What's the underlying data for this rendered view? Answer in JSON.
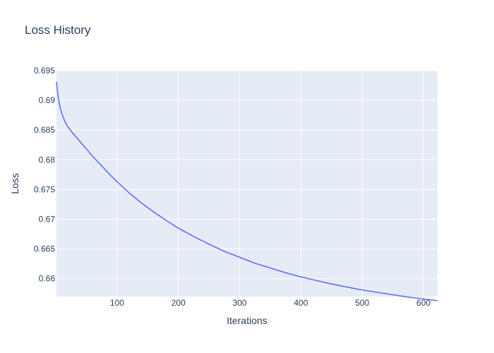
{
  "chart_data": {
    "type": "line",
    "title": "Loss History",
    "xlabel": "Iterations",
    "ylabel": "Loss",
    "xlim": [
      1,
      623
    ],
    "ylim": [
      0.657,
      0.695
    ],
    "grid": true,
    "xticks": [
      100,
      200,
      300,
      400,
      500,
      600
    ],
    "xtick_labels": [
      "100",
      "200",
      "300",
      "400",
      "500",
      "600"
    ],
    "yticks": [
      0.66,
      0.665,
      0.67,
      0.675,
      0.68,
      0.685,
      0.69,
      0.695
    ],
    "ytick_labels": [
      "0.66",
      "0.665",
      "0.67",
      "0.675",
      "0.68",
      "0.685",
      "0.69",
      "0.695"
    ],
    "series": [
      {
        "color": "#636efa",
        "x": [
          1,
          3,
          5,
          8,
          11,
          15,
          20,
          25,
          30,
          40,
          50,
          60,
          70,
          80,
          90,
          100,
          120,
          140,
          160,
          180,
          200,
          225,
          250,
          275,
          300,
          325,
          350,
          375,
          400,
          425,
          450,
          475,
          500,
          525,
          550,
          575,
          600,
          623
        ],
        "y": [
          0.6931,
          0.6912,
          0.6898,
          0.6884,
          0.6874,
          0.6864,
          0.6855,
          0.6848,
          0.6842,
          0.683,
          0.6818,
          0.6806,
          0.6795,
          0.6784,
          0.6773,
          0.6763,
          0.6744,
          0.6727,
          0.6712,
          0.6698,
          0.6685,
          0.6671,
          0.6658,
          0.6646,
          0.6636,
          0.6626,
          0.6618,
          0.661,
          0.6603,
          0.6597,
          0.6591,
          0.6586,
          0.6581,
          0.6577,
          0.6573,
          0.6569,
          0.6566,
          0.6563
        ]
      }
    ]
  },
  "colors": {
    "plot_background": "#e5ecf6",
    "gridline": "#ffffff",
    "text": "#2a3f5f"
  }
}
